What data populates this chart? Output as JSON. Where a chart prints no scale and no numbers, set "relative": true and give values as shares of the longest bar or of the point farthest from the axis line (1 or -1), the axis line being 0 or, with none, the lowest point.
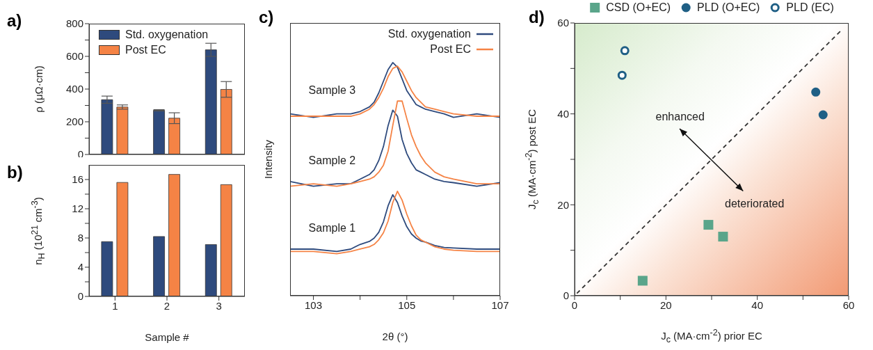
{
  "chart_data": [
    {
      "type": "bar",
      "title": "a)",
      "ylabel": "ρ (μΩ·cm)",
      "categories": [
        "1",
        "2",
        "3"
      ],
      "series": [
        {
          "name": "Std. oxygenation",
          "color": "#2e4a7d",
          "values": [
            335,
            270,
            640
          ],
          "errors": [
            22,
            4,
            40
          ]
        },
        {
          "name": "Post EC",
          "color": "#f58345",
          "values": [
            290,
            222,
            398
          ],
          "errors": [
            13,
            33,
            48
          ]
        }
      ],
      "ylim": [
        0,
        800
      ],
      "yticks": [
        0,
        {
          "value": 100,
          "label": null
        },
        200,
        {
          "value": 300,
          "label": null
        },
        400,
        {
          "value": 500,
          "label": null
        },
        600,
        {
          "value": 700,
          "label": null
        },
        800
      ],
      "legend": "top left",
      "tick_labels": "y"
    },
    {
      "type": "bar",
      "title": "b)",
      "xlabel": "Sample #",
      "ylabel": "n$_{H}$ (10$^{21}$ cm$^{-3}$)",
      "categories": [
        "1",
        "2",
        "3"
      ],
      "series": [
        {
          "color": "#2e4a7d",
          "values": [
            7.5,
            8.2,
            7.1
          ]
        },
        {
          "color": "#f58345",
          "values": [
            15.6,
            16.7,
            15.3
          ]
        }
      ],
      "ylim": [
        0,
        18
      ],
      "yticks": [
        0,
        {
          "value": 2,
          "label": null
        },
        4,
        {
          "value": 6,
          "label": null
        },
        8,
        {
          "value": 10,
          "label": null
        },
        12,
        {
          "value": 14,
          "label": null
        },
        16
      ]
    },
    {
      "type": "line",
      "title": "c)",
      "xlabel": "2θ (°)",
      "ylabel": "Intensity",
      "relative": true,
      "x": [
        102.5,
        103,
        103.5,
        103.8,
        104.0,
        104.2,
        104.3,
        104.4,
        104.5,
        104.6,
        104.7,
        104.8,
        104.9,
        105.0,
        105.1,
        105.2,
        105.3,
        105.4,
        105.6,
        105.8,
        106.0,
        106.5,
        107
      ],
      "series": [
        {
          "name": "Std. oxygenation",
          "color": "#2e4a7d",
          "values": [
            0.2,
            0.2,
            0.19,
            0.2,
            0.22,
            0.233,
            0.247,
            0.272,
            0.317,
            0.386,
            0.433,
            0.4,
            0.342,
            0.296,
            0.265,
            0.247,
            0.235,
            0.23,
            0.215,
            0.207,
            0.205,
            0.2,
            0.2
          ]
        },
        {
          "name": "Post EC",
          "color": "#f58345",
          "values": [
            0.19,
            0.19,
            0.18,
            0.19,
            0.2,
            0.21,
            0.22,
            0.24,
            0.27,
            0.32,
            0.4,
            0.448,
            0.41,
            0.35,
            0.3,
            0.26,
            0.24,
            0.23,
            0.21,
            0.2,
            0.195,
            0.19,
            0.19
          ]
        },
        {
          "color": "#2e4a7d",
          "values": [
            0.49,
            0.47,
            0.48,
            0.48,
            0.5,
            0.52,
            0.54,
            0.58,
            0.64,
            0.73,
            0.796,
            0.77,
            0.67,
            0.61,
            0.57,
            0.54,
            0.53,
            0.52,
            0.5,
            0.49,
            0.485,
            0.47,
            0.485
          ]
        },
        {
          "color": "#f58345",
          "values": [
            0.47,
            0.48,
            0.47,
            0.48,
            0.49,
            0.5,
            0.51,
            0.53,
            0.56,
            0.62,
            0.73,
            0.835,
            0.835,
            0.76,
            0.69,
            0.64,
            0.6,
            0.57,
            0.53,
            0.51,
            0.5,
            0.48,
            0.48
          ]
        },
        {
          "color": "#2e4a7d",
          "values": [
            0.78,
            0.765,
            0.78,
            0.78,
            0.79,
            0.81,
            0.83,
            0.87,
            0.92,
            0.97,
            1.0,
            0.98,
            0.93,
            0.88,
            0.85,
            0.82,
            0.81,
            0.8,
            0.79,
            0.78,
            0.765,
            0.78,
            0.765
          ]
        },
        {
          "color": "#f58345",
          "values": [
            0.77,
            0.77,
            0.77,
            0.77,
            0.78,
            0.8,
            0.82,
            0.85,
            0.89,
            0.94,
            0.975,
            0.985,
            0.96,
            0.92,
            0.88,
            0.85,
            0.83,
            0.81,
            0.8,
            0.79,
            0.78,
            0.77,
            0.77
          ]
        }
      ],
      "xlim": [
        102.5,
        107
      ],
      "xticks": [
        103,
        {
          "value": 104,
          "label": null
        },
        105,
        {
          "value": 106,
          "label": null
        },
        107
      ],
      "legend": "top right",
      "annotations": [
        "Sample 3",
        "Sample 2",
        "Sample 1"
      ]
    },
    {
      "type": "scatter",
      "title": "d)",
      "xlabel": "J$_{c}$ (MA·cm$^{-2}$) prior EC",
      "ylabel": "J$_{c}$ (MA·cm$^{-2}$) post EC",
      "series": [
        {
          "name": "CSD (O+EC)",
          "color": "#5aa58a",
          "marker": "square",
          "x": [
            14.9,
            29.3,
            32.5
          ],
          "values": [
            3.3,
            15.6,
            13.0
          ]
        },
        {
          "name": "PLD (O+EC)",
          "color": "#1f5f85",
          "marker": "circle",
          "x": [
            52.8,
            54.4
          ],
          "values": [
            44.8,
            39.8
          ]
        },
        {
          "name": "PLD (EC)",
          "color": "#1f5f85",
          "marker": "circle-open",
          "x": [
            10.4,
            11.0
          ],
          "values": [
            48.5,
            53.9
          ]
        },
        {
          "type": "line",
          "color": "#333333",
          "line_style": "dashed",
          "x": [
            0.5,
            58.2
          ],
          "values": [
            0.5,
            58.2
          ]
        }
      ],
      "xlim": [
        0,
        60
      ],
      "ylim": [
        0,
        60
      ],
      "xticks": [
        0,
        {
          "value": 10,
          "label": null
        },
        20,
        {
          "value": 30,
          "label": null
        },
        40,
        {
          "value": 50,
          "label": null
        },
        60
      ],
      "yticks": [
        0,
        {
          "value": 10,
          "label": null
        },
        20,
        {
          "value": 30,
          "label": null
        },
        40,
        {
          "value": 50,
          "label": null
        },
        60
      ],
      "legend": "top",
      "annotations": [
        "enhanced",
        "deteriorated"
      ]
    }
  ]
}
